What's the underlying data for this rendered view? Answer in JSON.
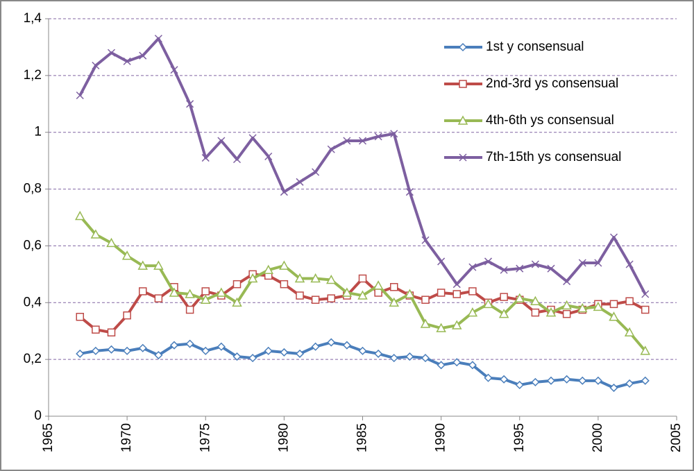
{
  "chart_data": {
    "type": "line",
    "x": [
      1967,
      1968,
      1969,
      1970,
      1971,
      1972,
      1973,
      1974,
      1975,
      1976,
      1977,
      1978,
      1979,
      1980,
      1981,
      1982,
      1983,
      1984,
      1985,
      1986,
      1987,
      1988,
      1989,
      1990,
      1991,
      1992,
      1993,
      1994,
      1995,
      1996,
      1997,
      1998,
      1999,
      2000,
      2001,
      2002,
      2003
    ],
    "series": [
      {
        "name": "1st y consensual",
        "color": "#4a7ebb",
        "marker": "diamond",
        "values": [
          0.22,
          0.23,
          0.235,
          0.23,
          0.24,
          0.215,
          0.25,
          0.255,
          0.23,
          0.245,
          0.21,
          0.205,
          0.23,
          0.225,
          0.22,
          0.245,
          0.26,
          0.25,
          0.23,
          0.22,
          0.205,
          0.21,
          0.205,
          0.18,
          0.19,
          0.18,
          0.135,
          0.13,
          0.11,
          0.12,
          0.125,
          0.13,
          0.125,
          0.125,
          0.1,
          0.115,
          0.125
        ]
      },
      {
        "name": "2nd-3rd ys consensual",
        "color": "#be4b48",
        "marker": "square",
        "values": [
          0.35,
          0.305,
          0.295,
          0.355,
          0.44,
          0.415,
          0.455,
          0.375,
          0.44,
          0.425,
          0.465,
          0.5,
          0.495,
          0.465,
          0.425,
          0.41,
          0.415,
          0.425,
          0.485,
          0.435,
          0.455,
          0.425,
          0.41,
          0.435,
          0.43,
          0.44,
          0.4,
          0.42,
          0.41,
          0.365,
          0.375,
          0.36,
          0.375,
          0.395,
          0.395,
          0.405,
          0.375
        ]
      },
      {
        "name": "4th-6th ys consensual",
        "color": "#98b954",
        "marker": "triangle",
        "values": [
          0.705,
          0.64,
          0.61,
          0.565,
          0.53,
          0.53,
          0.435,
          0.43,
          0.41,
          0.435,
          0.4,
          0.485,
          0.515,
          0.53,
          0.485,
          0.485,
          0.48,
          0.435,
          0.425,
          0.46,
          0.4,
          0.43,
          0.325,
          0.31,
          0.32,
          0.365,
          0.395,
          0.36,
          0.415,
          0.405,
          0.365,
          0.39,
          0.38,
          0.385,
          0.35,
          0.295,
          0.23
        ]
      },
      {
        "name": "7th-15th ys consensual",
        "color": "#7d5fa0",
        "marker": "x",
        "values": [
          1.13,
          1.235,
          1.28,
          1.25,
          1.27,
          1.33,
          1.22,
          1.1,
          0.91,
          0.97,
          0.905,
          0.98,
          0.915,
          0.79,
          0.825,
          0.86,
          0.94,
          0.97,
          0.97,
          0.985,
          0.995,
          0.79,
          0.62,
          0.545,
          0.465,
          0.525,
          0.545,
          0.515,
          0.52,
          0.535,
          0.52,
          0.475,
          0.54,
          0.54,
          0.63,
          0.535,
          0.43
        ]
      }
    ],
    "xlim": [
      1965,
      2005
    ],
    "xticks": [
      1965,
      1970,
      1975,
      1980,
      1985,
      1990,
      1995,
      2000,
      2005
    ],
    "ylim": [
      0,
      1.4
    ],
    "yticks": [
      0,
      {
        "value": 0.2,
        "label": "0,2"
      },
      {
        "value": 0.4,
        "label": "0,4"
      },
      {
        "value": 0.6,
        "label": "0,6"
      },
      {
        "value": 0.8,
        "label": "0,8"
      },
      1,
      {
        "value": 1.2,
        "label": "1,2"
      },
      {
        "value": 1.4,
        "label": "1,4"
      }
    ],
    "grid": true,
    "legend": "upper right"
  }
}
